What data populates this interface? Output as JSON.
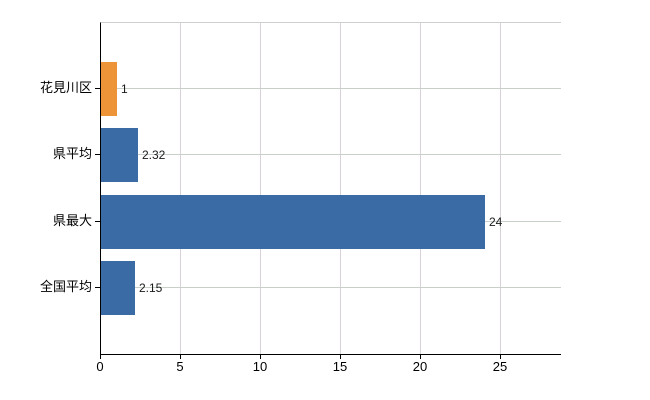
{
  "chart_data": {
    "type": "bar",
    "orientation": "horizontal",
    "title": "",
    "categories": [
      "花見川区",
      "県平均",
      "県最大",
      "全国平均"
    ],
    "values": [
      1,
      2.32,
      24,
      2.15
    ],
    "value_labels": [
      "1",
      "2.32",
      "24",
      "2.15"
    ],
    "bar_colors": [
      "#ee9438",
      "#3a6ba5",
      "#3a6ba5",
      "#3a6ba5"
    ],
    "xticks": [
      0,
      5,
      10,
      15,
      20,
      25
    ],
    "xtick_labels": [
      "0",
      "5",
      "10",
      "15",
      "20",
      "25"
    ],
    "xlim": [
      0,
      28.75
    ],
    "grid": true,
    "legend": false
  },
  "colors": {
    "accent_orange": "#ee9438",
    "accent_blue": "#3a6ba5",
    "axis": "#000000",
    "gridline_vertical": "#d7d2d7",
    "gridline_horizontal": "#c9d0c9",
    "background": "#ffffff"
  }
}
